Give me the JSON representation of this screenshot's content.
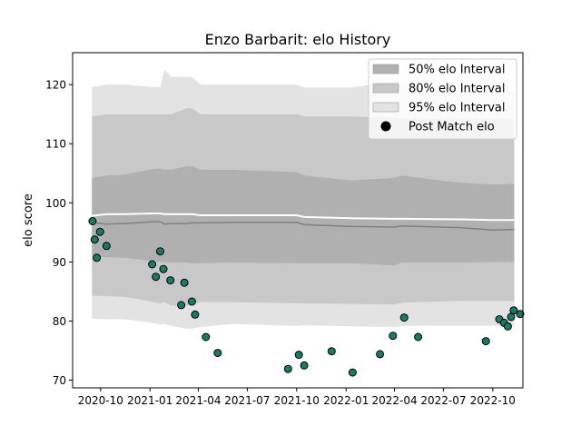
{
  "chart_data": {
    "type": "area",
    "title": "Enzo Barbarit: elo History",
    "xlabel": "",
    "ylabel": "elo score",
    "x_ticks": [
      "2020-10",
      "2021-01",
      "2021-04",
      "2021-07",
      "2021-10",
      "2022-01",
      "2022-04",
      "2022-07",
      "2022-10"
    ],
    "y_ticks": [
      70,
      80,
      90,
      100,
      110,
      120
    ],
    "xlim": [
      "2020-08-10",
      "2022-11-26"
    ],
    "ylim": [
      68.7,
      125.4
    ],
    "grid": false,
    "legend_position": "top-right",
    "legend": [
      {
        "label": "50% elo Interval",
        "kind": "patch",
        "color": "#b0b0b0"
      },
      {
        "label": "80% elo Interval",
        "kind": "patch",
        "color": "#c8c8c8"
      },
      {
        "label": "95% elo Interval",
        "kind": "patch",
        "color": "#e3e3e3"
      },
      {
        "label": "Post Match elo",
        "kind": "marker",
        "color": "#000000"
      }
    ],
    "colors": {
      "band50": "#b0b0b0",
      "band80": "#c8c8c8",
      "band95": "#e3e3e3",
      "median_line": "#808080",
      "upper_line": "#ffffff",
      "points_fill": "#1a7a68",
      "points_edge": "#000000"
    },
    "bands": {
      "x": [
        "2020-09-15",
        "2020-10-12",
        "2020-11-15",
        "2021-01-05",
        "2021-01-20",
        "2021-01-28",
        "2021-02-10",
        "2021-03-10",
        "2021-03-20",
        "2021-04-05",
        "2021-06-01",
        "2021-10-01",
        "2021-10-15",
        "2022-01-10",
        "2022-04-01",
        "2022-04-15",
        "2022-08-01",
        "2022-10-01",
        "2022-11-10"
      ],
      "median": [
        96.7,
        96.4,
        96.5,
        96.8,
        96.8,
        96.4,
        96.5,
        96.5,
        96.6,
        96.6,
        96.7,
        96.7,
        96.3,
        96.0,
        95.9,
        96.1,
        95.8,
        95.4,
        95.5
      ],
      "upper_line": [
        97.8,
        98.1,
        98.1,
        98.2,
        98.2,
        98.1,
        98.1,
        98.1,
        98.1,
        97.9,
        97.9,
        97.9,
        97.6,
        97.4,
        97.3,
        97.3,
        97.2,
        97.1,
        97.1
      ],
      "band50": {
        "lower": [
          91.0,
          90.8,
          90.7,
          90.2,
          90.0,
          90.0,
          89.9,
          89.9,
          89.8,
          89.8,
          89.9,
          89.8,
          89.8,
          89.8,
          89.4,
          89.9,
          89.9,
          90.0,
          90.0
        ],
        "upper": [
          104.2,
          104.6,
          104.8,
          105.7,
          105.8,
          105.6,
          105.6,
          106.2,
          106.2,
          105.6,
          105.6,
          105.2,
          104.6,
          103.8,
          104.2,
          104.6,
          103.4,
          103.1,
          103.2
        ]
      },
      "band80": {
        "lower": [
          84.3,
          84.2,
          84.1,
          83.3,
          83.0,
          83.2,
          82.6,
          82.6,
          82.8,
          83.2,
          83.2,
          83.0,
          83.0,
          82.9,
          82.8,
          83.1,
          83.4,
          83.4,
          83.4
        ],
        "upper": [
          114.6,
          115.0,
          115.0,
          115.0,
          115.0,
          115.0,
          115.0,
          116.0,
          116.0,
          115.0,
          115.0,
          115.0,
          114.6,
          114.6,
          114.4,
          114.2,
          114.2,
          114.2,
          114.2
        ]
      },
      "band95": {
        "lower": [
          80.4,
          80.3,
          80.3,
          79.7,
          79.4,
          79.5,
          79.2,
          78.7,
          78.7,
          79.0,
          79.5,
          79.2,
          79.3,
          79.1,
          79.0,
          79.2,
          79.2,
          79.2,
          79.2
        ],
        "upper": [
          119.6,
          120.0,
          120.0,
          119.6,
          119.6,
          122.5,
          121.3,
          121.3,
          121.3,
          120.0,
          120.0,
          120.0,
          119.5,
          119.5,
          120.5,
          120.0,
          119.0,
          119.0,
          119.0
        ]
      }
    },
    "series": [
      {
        "name": "Post Match elo",
        "type": "scatter",
        "points": [
          {
            "x": "2020-09-16",
            "y": 96.9
          },
          {
            "x": "2020-09-20",
            "y": 93.8
          },
          {
            "x": "2020-09-24",
            "y": 90.7
          },
          {
            "x": "2020-09-30",
            "y": 95.1
          },
          {
            "x": "2020-10-12",
            "y": 92.7
          },
          {
            "x": "2021-01-05",
            "y": 89.6
          },
          {
            "x": "2021-01-12",
            "y": 87.5
          },
          {
            "x": "2021-01-20",
            "y": 91.8
          },
          {
            "x": "2021-01-26",
            "y": 88.8
          },
          {
            "x": "2021-02-08",
            "y": 86.9
          },
          {
            "x": "2021-02-28",
            "y": 82.7
          },
          {
            "x": "2021-03-06",
            "y": 86.5
          },
          {
            "x": "2021-03-20",
            "y": 83.3
          },
          {
            "x": "2021-03-26",
            "y": 81.1
          },
          {
            "x": "2021-04-15",
            "y": 77.3
          },
          {
            "x": "2021-05-07",
            "y": 74.6
          },
          {
            "x": "2021-09-15",
            "y": 71.9
          },
          {
            "x": "2021-10-05",
            "y": 74.3
          },
          {
            "x": "2021-10-15",
            "y": 72.5
          },
          {
            "x": "2021-12-05",
            "y": 74.9
          },
          {
            "x": "2022-01-13",
            "y": 71.3
          },
          {
            "x": "2022-03-05",
            "y": 74.4
          },
          {
            "x": "2022-03-29",
            "y": 77.5
          },
          {
            "x": "2022-04-19",
            "y": 80.6
          },
          {
            "x": "2022-05-15",
            "y": 77.3
          },
          {
            "x": "2022-09-18",
            "y": 76.6
          },
          {
            "x": "2022-10-13",
            "y": 80.3
          },
          {
            "x": "2022-10-22",
            "y": 79.7
          },
          {
            "x": "2022-10-29",
            "y": 79.1
          },
          {
            "x": "2022-11-04",
            "y": 80.7
          },
          {
            "x": "2022-11-09",
            "y": 81.8
          },
          {
            "x": "2022-11-21",
            "y": 81.2
          }
        ]
      }
    ]
  }
}
